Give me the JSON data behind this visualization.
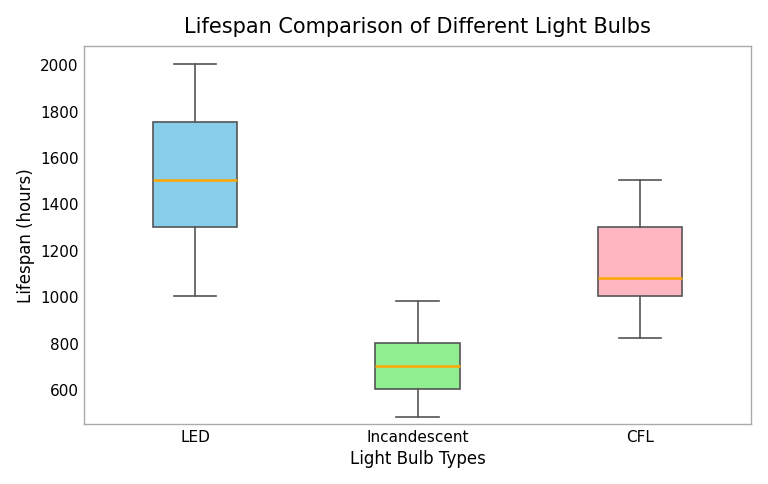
{
  "title": "Lifespan Comparison of Different Light Bulbs",
  "xlabel": "Light Bulb Types",
  "ylabel": "Lifespan (hours)",
  "categories": [
    "LED",
    "Incandescent",
    "CFL"
  ],
  "box_data": [
    {
      "whislo": 1000,
      "q1": 1300,
      "med": 1500,
      "q3": 1750,
      "whishi": 2000
    },
    {
      "whislo": 480,
      "q1": 600,
      "med": 700,
      "q3": 800,
      "whishi": 980
    },
    {
      "whislo": 820,
      "q1": 1000,
      "med": 1080,
      "q3": 1300,
      "whishi": 1500
    }
  ],
  "box_colors": [
    "#87CEEB",
    "#90EE90",
    "#FFB6C1"
  ],
  "median_color": "#FFA500",
  "whisker_color": "#555555",
  "box_edge_color": "#555555",
  "spine_color": "#aaaaaa",
  "background_color": "#ffffff",
  "fig_background_color": "#ffffff",
  "ylim": [
    450,
    2080
  ],
  "yticks": [
    600,
    800,
    1000,
    1200,
    1400,
    1600,
    1800,
    2000
  ],
  "title_fontsize": 15,
  "label_fontsize": 12,
  "tick_fontsize": 11,
  "box_width": 0.38
}
